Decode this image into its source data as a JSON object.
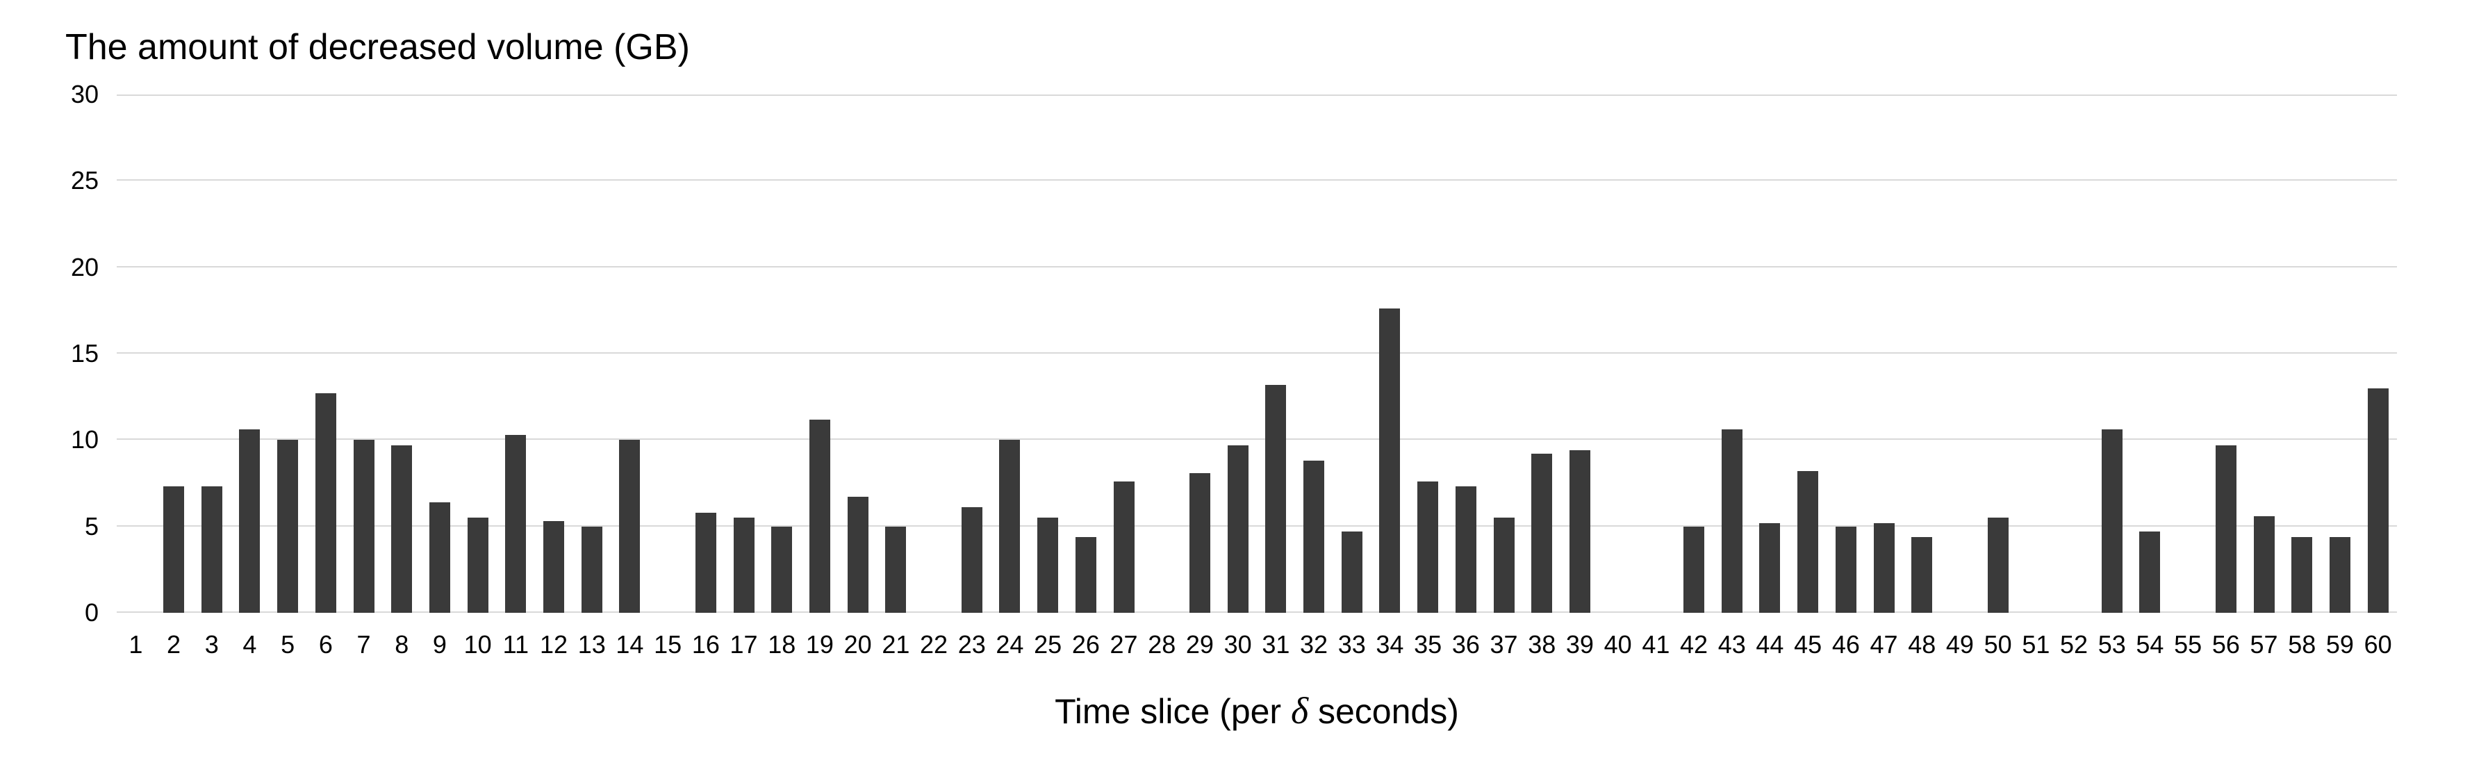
{
  "chart_data": {
    "type": "bar",
    "title": "The amount of decreased volume (GB)",
    "xlabel": "Time slice (per δ seconds)",
    "xlabel_parts": {
      "prefix": "Time slice (per ",
      "delta": "δ",
      "suffix": " seconds)"
    },
    "ylabel": "",
    "ylim": [
      0,
      30
    ],
    "yticks": [
      0,
      5,
      10,
      15,
      20,
      25,
      30
    ],
    "grid": "horizontal",
    "legend_position": "none",
    "colors": {
      "bar": "#3a3a3a",
      "gridline": "#d9d9d9",
      "text": "#000000",
      "background": "#ffffff"
    },
    "categories": [
      "1",
      "2",
      "3",
      "4",
      "5",
      "6",
      "7",
      "8",
      "9",
      "10",
      "11",
      "12",
      "13",
      "14",
      "15",
      "16",
      "17",
      "18",
      "19",
      "20",
      "21",
      "22",
      "23",
      "24",
      "25",
      "26",
      "27",
      "28",
      "29",
      "30",
      "31",
      "32",
      "33",
      "34",
      "35",
      "36",
      "37",
      "38",
      "39",
      "40",
      "41",
      "42",
      "43",
      "44",
      "45",
      "46",
      "47",
      "48",
      "49",
      "50",
      "51",
      "52",
      "53",
      "54",
      "55",
      "56",
      "57",
      "58",
      "59",
      "60"
    ],
    "values": [
      0,
      7.3,
      7.3,
      10.6,
      10,
      12.7,
      10,
      9.7,
      6.4,
      5.5,
      10.3,
      5.3,
      5,
      10,
      0,
      5.8,
      5.5,
      5,
      11.2,
      6.7,
      5,
      0,
      6.1,
      10,
      5.5,
      4.4,
      7.6,
      0,
      8.1,
      9.7,
      13.2,
      8.8,
      4.7,
      17.6,
      7.6,
      7.3,
      5.5,
      9.2,
      9.4,
      0,
      0,
      5,
      10.6,
      5.2,
      8.2,
      5,
      5.2,
      4.4,
      0,
      5.5,
      0,
      0,
      10.6,
      4.7,
      0,
      9.7,
      5.6,
      4.4,
      4.4,
      13
    ]
  }
}
